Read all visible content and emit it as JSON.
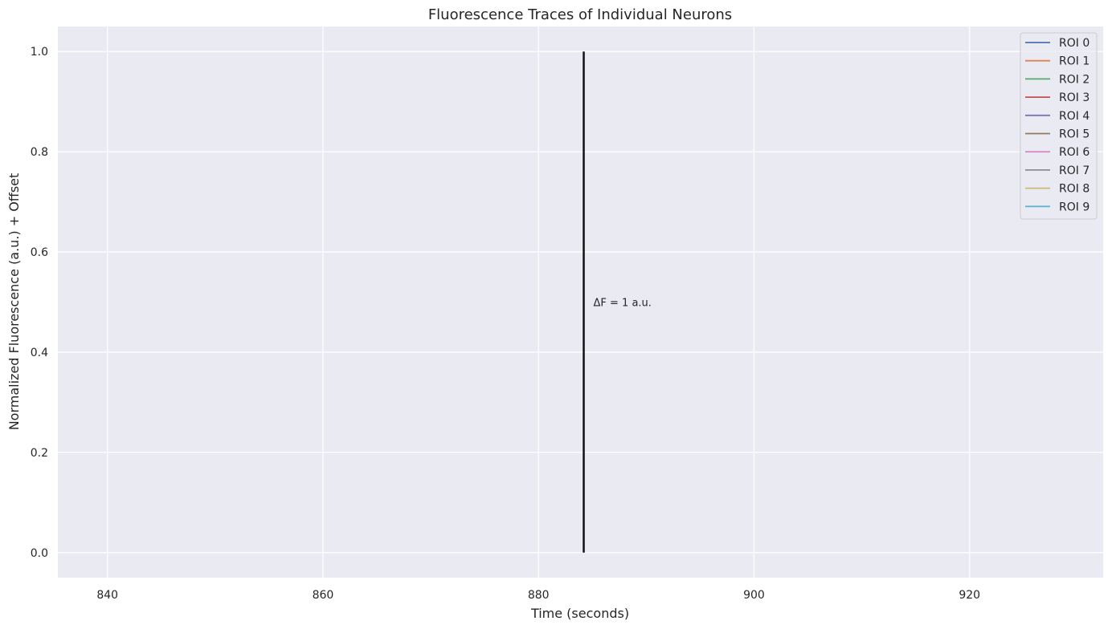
{
  "chart_data": {
    "type": "line",
    "title": "Fluorescence Traces of Individual Neurons",
    "xlabel": "Time (seconds)",
    "ylabel": "Normalized Fluorescence (a.u.) + Offset",
    "xlim": [
      835.4,
      932.4
    ],
    "ylim": [
      -0.05,
      1.05
    ],
    "xticks": [
      840,
      860,
      880,
      900,
      920
    ],
    "yticks": [
      0.0,
      0.2,
      0.4,
      0.6,
      0.8,
      1.0
    ],
    "xtick_labels": [
      "840",
      "860",
      "880",
      "900",
      "920"
    ],
    "ytick_labels": [
      "0.0",
      "0.2",
      "0.4",
      "0.6",
      "0.8",
      "1.0"
    ],
    "grid": true,
    "legend_position": "top-right",
    "series": [
      {
        "name": "ROI 0",
        "color": "#4c72b0",
        "x": [],
        "y": []
      },
      {
        "name": "ROI 1",
        "color": "#dd8452",
        "x": [],
        "y": []
      },
      {
        "name": "ROI 2",
        "color": "#55a868",
        "x": [],
        "y": []
      },
      {
        "name": "ROI 3",
        "color": "#c44e52",
        "x": [],
        "y": []
      },
      {
        "name": "ROI 4",
        "color": "#8172b3",
        "x": [],
        "y": []
      },
      {
        "name": "ROI 5",
        "color": "#937860",
        "x": [],
        "y": []
      },
      {
        "name": "ROI 6",
        "color": "#da8bc3",
        "x": [],
        "y": []
      },
      {
        "name": "ROI 7",
        "color": "#8c8c8c",
        "x": [],
        "y": []
      },
      {
        "name": "ROI 8",
        "color": "#ccb974",
        "x": [],
        "y": []
      },
      {
        "name": "ROI 9",
        "color": "#64b5cd",
        "x": [],
        "y": []
      }
    ],
    "scale_bar": {
      "x": 884.2,
      "y_start": 0.0,
      "y_end": 1.0,
      "label": "ΔF = 1 a.u.",
      "color": "#111111"
    },
    "colors": {
      "plot_background": "#eaeaf2",
      "grid": "#ffffff",
      "legend_background": "#eaeaf2",
      "legend_border": "#cccccc"
    }
  }
}
